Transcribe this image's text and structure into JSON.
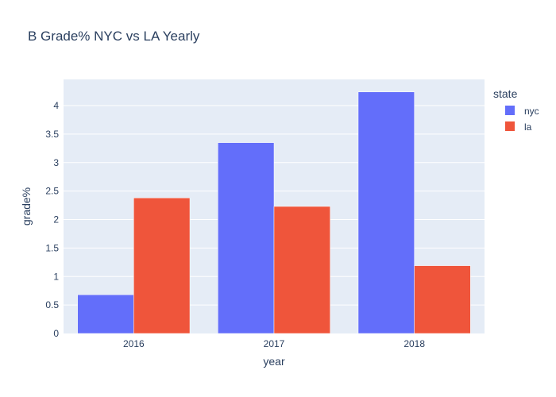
{
  "chart_data": {
    "type": "bar",
    "title": "B Grade% NYC vs LA Yearly",
    "xlabel": "year",
    "ylabel": "grade%",
    "categories": [
      "2016",
      "2017",
      "2018"
    ],
    "series": [
      {
        "name": "nyc",
        "values": [
          0.68,
          3.35,
          4.24
        ],
        "color": "#636efa"
      },
      {
        "name": "la",
        "values": [
          2.38,
          2.23,
          1.19
        ],
        "color": "#ef553b"
      }
    ],
    "ylim": [
      0,
      4.46
    ],
    "yticks": [
      0,
      0.5,
      1,
      1.5,
      2,
      2.5,
      3,
      3.5,
      4
    ],
    "ytick_labels": [
      "0",
      "0.5",
      "1",
      "1.5",
      "2",
      "2.5",
      "3",
      "3.5",
      "4"
    ],
    "grid": true,
    "legend": {
      "title": "state",
      "placement": "right"
    },
    "plot_background": "#e5ecf6"
  }
}
